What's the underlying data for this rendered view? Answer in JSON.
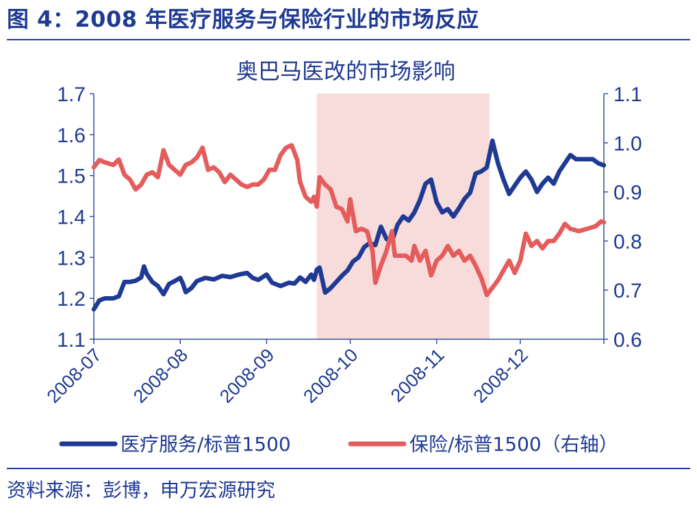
{
  "figure_title": "图 4：2008 年医疗服务与保险行业的市场反应",
  "source": "资料来源：彭博，申万宏源研究",
  "colors": {
    "accent": "#1f3a93",
    "healthcare": "#1f3a93",
    "insurance": "#e45c5c",
    "shade": "#f8dcdc"
  },
  "chart_data": {
    "type": "line",
    "title": "奥巴马医改的市场影响",
    "xlabel": "",
    "ylabel": "",
    "x_ticks": [
      "2008-07",
      "2008-08",
      "2008-09",
      "2008-10",
      "2008-11",
      "2008-12"
    ],
    "x_tick_dates": [
      "2008-07-01",
      "2008-08-01",
      "2008-09-01",
      "2008-10-01",
      "2008-11-01",
      "2008-12-01"
    ],
    "xlim": [
      "2008-07-01",
      "2008-12-31"
    ],
    "ylim_left": [
      1.1,
      1.7
    ],
    "yticks_left": [
      "1.1",
      "1.2",
      "1.3",
      "1.4",
      "1.5",
      "1.6",
      "1.7"
    ],
    "ylim_right": [
      0.6,
      1.1
    ],
    "yticks_right": [
      "0.6",
      "0.7",
      "0.8",
      "0.9",
      "1.0",
      "1.1"
    ],
    "shaded_region": {
      "from": "2008-09-19",
      "to": "2008-11-20"
    },
    "legend_position": "bottom",
    "grid": false,
    "series": [
      {
        "name": "医疗服务/标普1500",
        "axis": "left",
        "color": "#1f3a93",
        "points": [
          [
            "2008-07-01",
            1.173
          ],
          [
            "2008-07-03",
            1.195
          ],
          [
            "2008-07-05",
            1.2
          ],
          [
            "2008-07-08",
            1.2
          ],
          [
            "2008-07-10",
            1.205
          ],
          [
            "2008-07-12",
            1.24
          ],
          [
            "2008-07-14",
            1.24
          ],
          [
            "2008-07-16",
            1.243
          ],
          [
            "2008-07-18",
            1.251
          ],
          [
            "2008-07-19",
            1.278
          ],
          [
            "2008-07-20",
            1.26
          ],
          [
            "2008-07-22",
            1.24
          ],
          [
            "2008-07-24",
            1.23
          ],
          [
            "2008-07-26",
            1.21
          ],
          [
            "2008-07-28",
            1.235
          ],
          [
            "2008-07-30",
            1.242
          ],
          [
            "2008-08-01",
            1.25
          ],
          [
            "2008-08-02",
            1.235
          ],
          [
            "2008-08-03",
            1.215
          ],
          [
            "2008-08-05",
            1.225
          ],
          [
            "2008-08-07",
            1.242
          ],
          [
            "2008-08-10",
            1.25
          ],
          [
            "2008-08-13",
            1.246
          ],
          [
            "2008-08-16",
            1.255
          ],
          [
            "2008-08-19",
            1.252
          ],
          [
            "2008-08-22",
            1.258
          ],
          [
            "2008-08-25",
            1.262
          ],
          [
            "2008-08-27",
            1.25
          ],
          [
            "2008-08-29",
            1.245
          ],
          [
            "2008-09-01",
            1.258
          ],
          [
            "2008-09-03",
            1.238
          ],
          [
            "2008-09-06",
            1.23
          ],
          [
            "2008-09-09",
            1.238
          ],
          [
            "2008-09-11",
            1.236
          ],
          [
            "2008-09-13",
            1.251
          ],
          [
            "2008-09-15",
            1.24
          ],
          [
            "2008-09-17",
            1.258
          ],
          [
            "2008-09-18",
            1.245
          ],
          [
            "2008-09-19",
            1.27
          ],
          [
            "2008-09-20",
            1.275
          ],
          [
            "2008-09-22",
            1.214
          ],
          [
            "2008-09-24",
            1.225
          ],
          [
            "2008-09-26",
            1.24
          ],
          [
            "2008-09-28",
            1.255
          ],
          [
            "2008-09-30",
            1.268
          ],
          [
            "2008-10-02",
            1.29
          ],
          [
            "2008-10-04",
            1.3
          ],
          [
            "2008-10-06",
            1.325
          ],
          [
            "2008-10-08",
            1.335
          ],
          [
            "2008-10-10",
            1.33
          ],
          [
            "2008-10-12",
            1.375
          ],
          [
            "2008-10-14",
            1.345
          ],
          [
            "2008-10-16",
            1.34
          ],
          [
            "2008-10-18",
            1.38
          ],
          [
            "2008-10-20",
            1.4
          ],
          [
            "2008-10-22",
            1.39
          ],
          [
            "2008-10-24",
            1.41
          ],
          [
            "2008-10-26",
            1.44
          ],
          [
            "2008-10-28",
            1.48
          ],
          [
            "2008-10-30",
            1.49
          ],
          [
            "2008-11-01",
            1.435
          ],
          [
            "2008-11-03",
            1.41
          ],
          [
            "2008-11-05",
            1.418
          ],
          [
            "2008-11-07",
            1.4
          ],
          [
            "2008-11-09",
            1.42
          ],
          [
            "2008-11-11",
            1.443
          ],
          [
            "2008-11-13",
            1.458
          ],
          [
            "2008-11-15",
            1.505
          ],
          [
            "2008-11-17",
            1.51
          ],
          [
            "2008-11-19",
            1.52
          ],
          [
            "2008-11-21",
            1.585
          ],
          [
            "2008-11-23",
            1.53
          ],
          [
            "2008-11-25",
            1.49
          ],
          [
            "2008-11-27",
            1.455
          ],
          [
            "2008-11-29",
            1.475
          ],
          [
            "2008-12-01",
            1.495
          ],
          [
            "2008-12-03",
            1.51
          ],
          [
            "2008-12-05",
            1.49
          ],
          [
            "2008-12-07",
            1.46
          ],
          [
            "2008-12-09",
            1.48
          ],
          [
            "2008-12-11",
            1.495
          ],
          [
            "2008-12-13",
            1.48
          ],
          [
            "2008-12-15",
            1.51
          ],
          [
            "2008-12-17",
            1.53
          ],
          [
            "2008-12-19",
            1.55
          ],
          [
            "2008-12-21",
            1.54
          ],
          [
            "2008-12-24",
            1.54
          ],
          [
            "2008-12-27",
            1.54
          ],
          [
            "2008-12-29",
            1.53
          ],
          [
            "2008-12-31",
            1.525
          ]
        ]
      },
      {
        "name": "保险/标普1500（右轴）",
        "axis": "right",
        "color": "#e45c5c",
        "points": [
          [
            "2008-07-01",
            0.95
          ],
          [
            "2008-07-03",
            0.965
          ],
          [
            "2008-07-05",
            0.96
          ],
          [
            "2008-07-08",
            0.955
          ],
          [
            "2008-07-10",
            0.966
          ],
          [
            "2008-07-12",
            0.935
          ],
          [
            "2008-07-14",
            0.925
          ],
          [
            "2008-07-16",
            0.905
          ],
          [
            "2008-07-18",
            0.915
          ],
          [
            "2008-07-20",
            0.935
          ],
          [
            "2008-07-22",
            0.94
          ],
          [
            "2008-07-24",
            0.93
          ],
          [
            "2008-07-26",
            0.985
          ],
          [
            "2008-07-28",
            0.955
          ],
          [
            "2008-07-30",
            0.945
          ],
          [
            "2008-08-01",
            0.935
          ],
          [
            "2008-08-03",
            0.955
          ],
          [
            "2008-08-05",
            0.96
          ],
          [
            "2008-08-07",
            0.97
          ],
          [
            "2008-08-09",
            0.99
          ],
          [
            "2008-08-11",
            0.945
          ],
          [
            "2008-08-13",
            0.95
          ],
          [
            "2008-08-15",
            0.94
          ],
          [
            "2008-08-17",
            0.92
          ],
          [
            "2008-08-19",
            0.935
          ],
          [
            "2008-08-21",
            0.925
          ],
          [
            "2008-08-23",
            0.915
          ],
          [
            "2008-08-25",
            0.91
          ],
          [
            "2008-08-27",
            0.915
          ],
          [
            "2008-08-29",
            0.915
          ],
          [
            "2008-08-31",
            0.925
          ],
          [
            "2008-09-02",
            0.945
          ],
          [
            "2008-09-04",
            0.945
          ],
          [
            "2008-09-06",
            0.975
          ],
          [
            "2008-09-08",
            0.99
          ],
          [
            "2008-09-10",
            0.995
          ],
          [
            "2008-09-12",
            0.965
          ],
          [
            "2008-09-13",
            0.92
          ],
          [
            "2008-09-15",
            0.89
          ],
          [
            "2008-09-17",
            0.88
          ],
          [
            "2008-09-18",
            0.89
          ],
          [
            "2008-09-19",
            0.87
          ],
          [
            "2008-09-20",
            0.93
          ],
          [
            "2008-09-22",
            0.915
          ],
          [
            "2008-09-24",
            0.905
          ],
          [
            "2008-09-26",
            0.87
          ],
          [
            "2008-09-28",
            0.865
          ],
          [
            "2008-09-30",
            0.84
          ],
          [
            "2008-10-01",
            0.885
          ],
          [
            "2008-10-03",
            0.82
          ],
          [
            "2008-10-05",
            0.825
          ],
          [
            "2008-10-07",
            0.82
          ],
          [
            "2008-10-09",
            0.78
          ],
          [
            "2008-10-10",
            0.715
          ],
          [
            "2008-10-12",
            0.75
          ],
          [
            "2008-10-14",
            0.78
          ],
          [
            "2008-10-16",
            0.82
          ],
          [
            "2008-10-17",
            0.77
          ],
          [
            "2008-10-19",
            0.77
          ],
          [
            "2008-10-21",
            0.77
          ],
          [
            "2008-10-23",
            0.76
          ],
          [
            "2008-10-24",
            0.79
          ],
          [
            "2008-10-26",
            0.76
          ],
          [
            "2008-10-28",
            0.78
          ],
          [
            "2008-10-30",
            0.73
          ],
          [
            "2008-11-01",
            0.76
          ],
          [
            "2008-11-03",
            0.77
          ],
          [
            "2008-11-05",
            0.79
          ],
          [
            "2008-11-07",
            0.77
          ],
          [
            "2008-11-09",
            0.78
          ],
          [
            "2008-11-11",
            0.76
          ],
          [
            "2008-11-13",
            0.77
          ],
          [
            "2008-11-15",
            0.75
          ],
          [
            "2008-11-17",
            0.725
          ],
          [
            "2008-11-19",
            0.69
          ],
          [
            "2008-11-21",
            0.705
          ],
          [
            "2008-11-23",
            0.72
          ],
          [
            "2008-11-25",
            0.74
          ],
          [
            "2008-11-27",
            0.76
          ],
          [
            "2008-11-29",
            0.735
          ],
          [
            "2008-12-01",
            0.76
          ],
          [
            "2008-12-03",
            0.815
          ],
          [
            "2008-12-05",
            0.79
          ],
          [
            "2008-12-07",
            0.8
          ],
          [
            "2008-12-09",
            0.785
          ],
          [
            "2008-12-11",
            0.8
          ],
          [
            "2008-12-13",
            0.8
          ],
          [
            "2008-12-15",
            0.815
          ],
          [
            "2008-12-17",
            0.835
          ],
          [
            "2008-12-19",
            0.825
          ],
          [
            "2008-12-22",
            0.82
          ],
          [
            "2008-12-25",
            0.825
          ],
          [
            "2008-12-28",
            0.83
          ],
          [
            "2008-12-30",
            0.84
          ],
          [
            "2008-12-31",
            0.838
          ]
        ]
      }
    ]
  }
}
